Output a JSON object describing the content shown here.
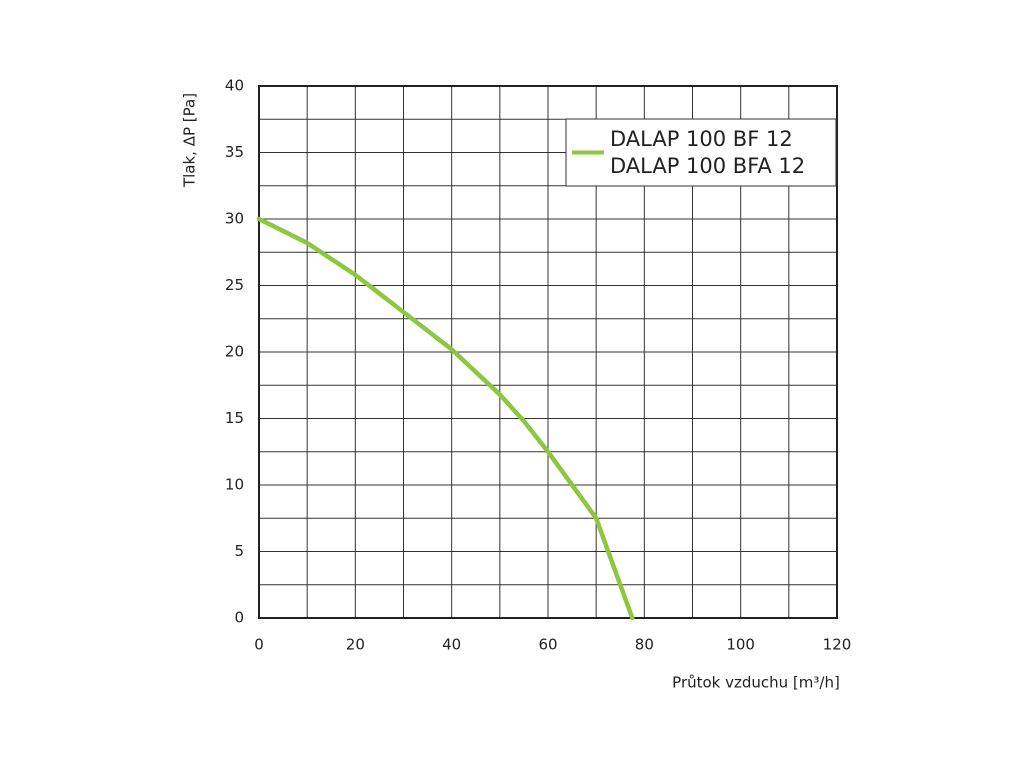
{
  "chart_data": {
    "type": "line",
    "x_label": "Průtok vzduchu [m³/h]",
    "y_label": "Tlak, ΔP [Pa]",
    "x": [
      0,
      10,
      20,
      30,
      40,
      50,
      55,
      60,
      65,
      70,
      72,
      75,
      77.5
    ],
    "series": [
      {
        "name": [
          "DALAP 100 BF 12",
          "DALAP 100 BFA 12"
        ],
        "color": "#8dc63f",
        "values": [
          30,
          28.2,
          25.8,
          23,
          20.2,
          16.8,
          14.8,
          12.5,
          10,
          7.5,
          5.5,
          2.5,
          0
        ]
      }
    ],
    "xlim": [
      0,
      120
    ],
    "xticks": [
      0,
      20,
      40,
      60,
      80,
      100,
      120
    ],
    "ylim": [
      0,
      40
    ],
    "yticks": [
      0,
      5,
      10,
      15,
      20,
      25,
      30,
      35,
      40
    ],
    "grid": true,
    "minor_grid": true,
    "legend": "upper right"
  }
}
